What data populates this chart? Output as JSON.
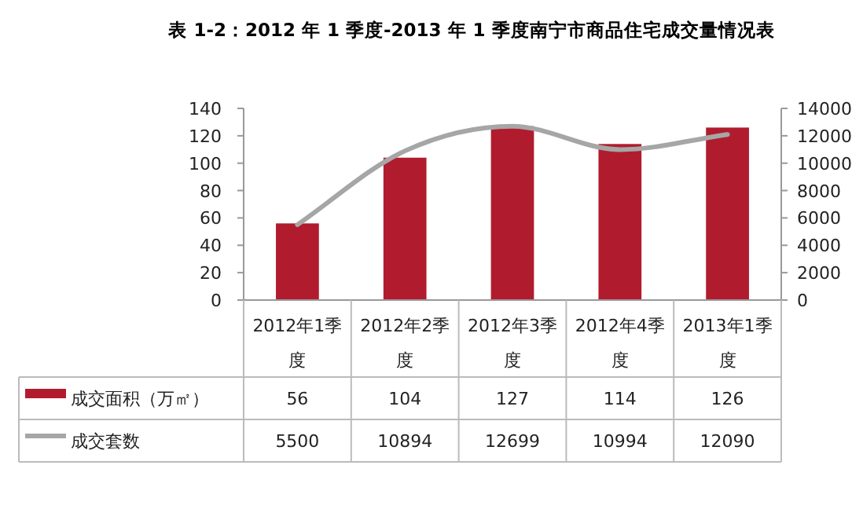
{
  "chart_data": {
    "type": "bar",
    "title": "表 1-2：2012 年 1 季度-2013 年 1 季度南宁市商品住宅成交量情况表",
    "categories": [
      "2012年1季度",
      "2012年2季度",
      "2012年3季度",
      "2012年4季度",
      "2013年1季度"
    ],
    "series": [
      {
        "name": "成交面积（万㎡）",
        "color": "#b01c2e",
        "values": [
          56,
          104,
          127,
          114,
          126
        ]
      },
      {
        "name": "成交套数",
        "type": "line",
        "axis": "y2",
        "color": "#a6a6a6",
        "values": [
          5500,
          10894,
          12699,
          10994,
          12090
        ]
      }
    ],
    "ylim": [
      0,
      140
    ],
    "yticks": [
      0,
      20,
      40,
      60,
      80,
      100,
      120,
      140
    ],
    "y2lim": [
      0,
      14000
    ],
    "y2ticks": [
      0,
      2000,
      4000,
      6000,
      8000,
      10000,
      12000,
      14000
    ],
    "data_labels": true,
    "legend": "bottom left",
    "grid": false
  }
}
